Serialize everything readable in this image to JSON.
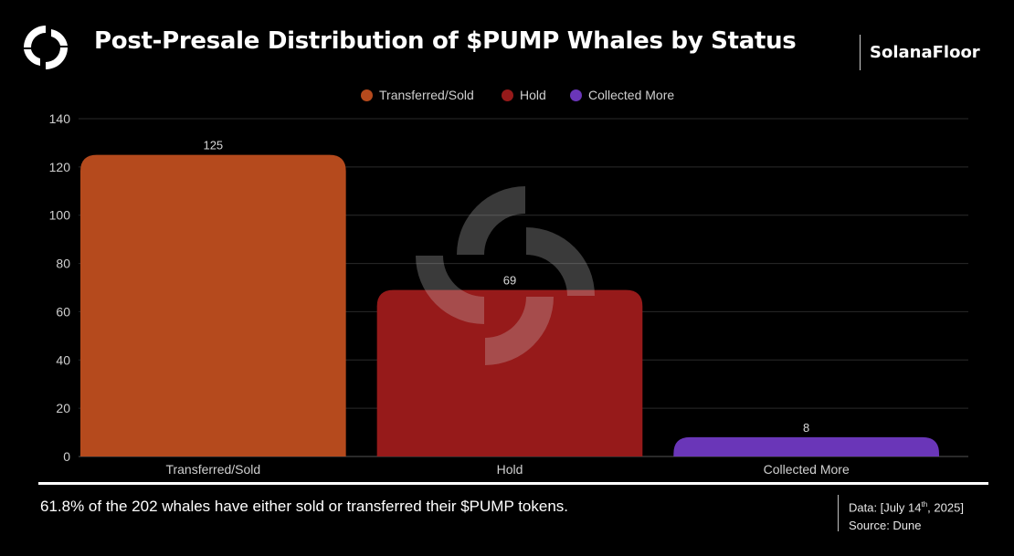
{
  "header": {
    "title": "Post-Presale Distribution of $PUMP Whales by Status",
    "brand": "SolanaFloor",
    "logo_icon": "solanafloor-logo-icon"
  },
  "colors": {
    "transferred_sold": "#b54a1d",
    "hold": "#961a1a",
    "collected_more": "#6a36b8",
    "background": "#000000",
    "grid": "#2a2a2a"
  },
  "chart_data": {
    "type": "bar",
    "title": "Post-Presale Distribution of $PUMP Whales by Status",
    "categories": [
      "Transferred/Sold",
      "Hold",
      "Collected More"
    ],
    "values": [
      125,
      69,
      8
    ],
    "data_labels": [
      "125",
      "69",
      "8"
    ],
    "legend": [
      "Transferred/Sold",
      "Hold",
      "Collected More"
    ],
    "legend_position": "top-center",
    "ylim": [
      0,
      140
    ],
    "yticks": [
      0,
      20,
      40,
      60,
      80,
      100,
      120,
      140
    ],
    "grid": true,
    "xlabel": "",
    "ylabel": ""
  },
  "footer": {
    "note": "61.8% of the 202 whales have either sold or transferred their $PUMP tokens.",
    "data_prefix": "Data: [July 14",
    "data_sup": "th",
    "data_suffix": ", 2025]",
    "source": "Source: Dune"
  }
}
